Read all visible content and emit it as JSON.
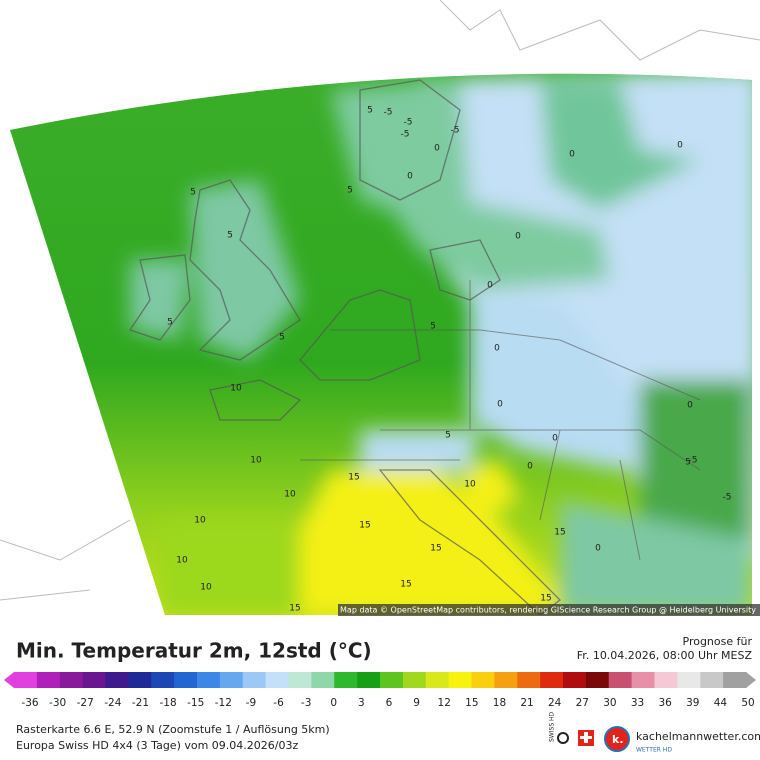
{
  "map": {
    "attribution": "Map data © OpenStreetMap contributors, rendering GIScience Research Group @ Heidelberg University",
    "contour_labels": [
      -5,
      -5,
      -5,
      -5,
      0,
      0,
      0,
      0,
      0,
      0,
      0,
      0,
      0,
      0,
      0,
      0,
      5,
      5,
      5,
      5,
      5,
      5,
      5,
      5,
      5,
      -5,
      -5,
      10,
      10,
      10,
      10,
      10,
      10,
      10,
      15,
      15,
      15,
      15,
      15,
      15,
      15
    ]
  },
  "header": {
    "title": "Min. Temperatur 2m, 12std (°C)",
    "forecast_label": "Prognose für",
    "forecast_time": "Fr. 10.04.2026, 08:00 Uhr MESZ"
  },
  "colorbar": {
    "ticks": [
      -36,
      -30,
      -27,
      -24,
      -21,
      -18,
      -15,
      -12,
      -9,
      -6,
      -3,
      0,
      3,
      6,
      9,
      12,
      15,
      18,
      21,
      24,
      27,
      30,
      33,
      36,
      39,
      44,
      50
    ],
    "colors": [
      "#e23fe0",
      "#b020b8",
      "#8a1a9c",
      "#6a1690",
      "#3f1a8c",
      "#1e2a96",
      "#1d47b4",
      "#2266d2",
      "#3c88e6",
      "#66a8f0",
      "#9cc8f6",
      "#c4e0f8",
      "#bfe8d4",
      "#8fd6a8",
      "#2db82d",
      "#16a016",
      "#5ec41e",
      "#9fd81e",
      "#d8e81a",
      "#f7f20e",
      "#f8d010",
      "#f4a010",
      "#ee6a10",
      "#e02a10",
      "#b00e0e",
      "#7a0808",
      "#c85070",
      "#e890a8",
      "#f4c8d4",
      "#e8e8e8",
      "#c8c8c8",
      "#a0a0a0"
    ]
  },
  "footer": {
    "line1": "Rasterkarte 6.6 E, 52.9 N (Zoomstufe 1 / Auflösung 5km)",
    "line2": "Europa Swiss HD 4x4 (3 Tage) vom 09.04.2026/03z",
    "swiss_label": "SWISS HD",
    "logo_text": "kachelmannwetter.com",
    "logo_sub": "WETTER HD"
  }
}
